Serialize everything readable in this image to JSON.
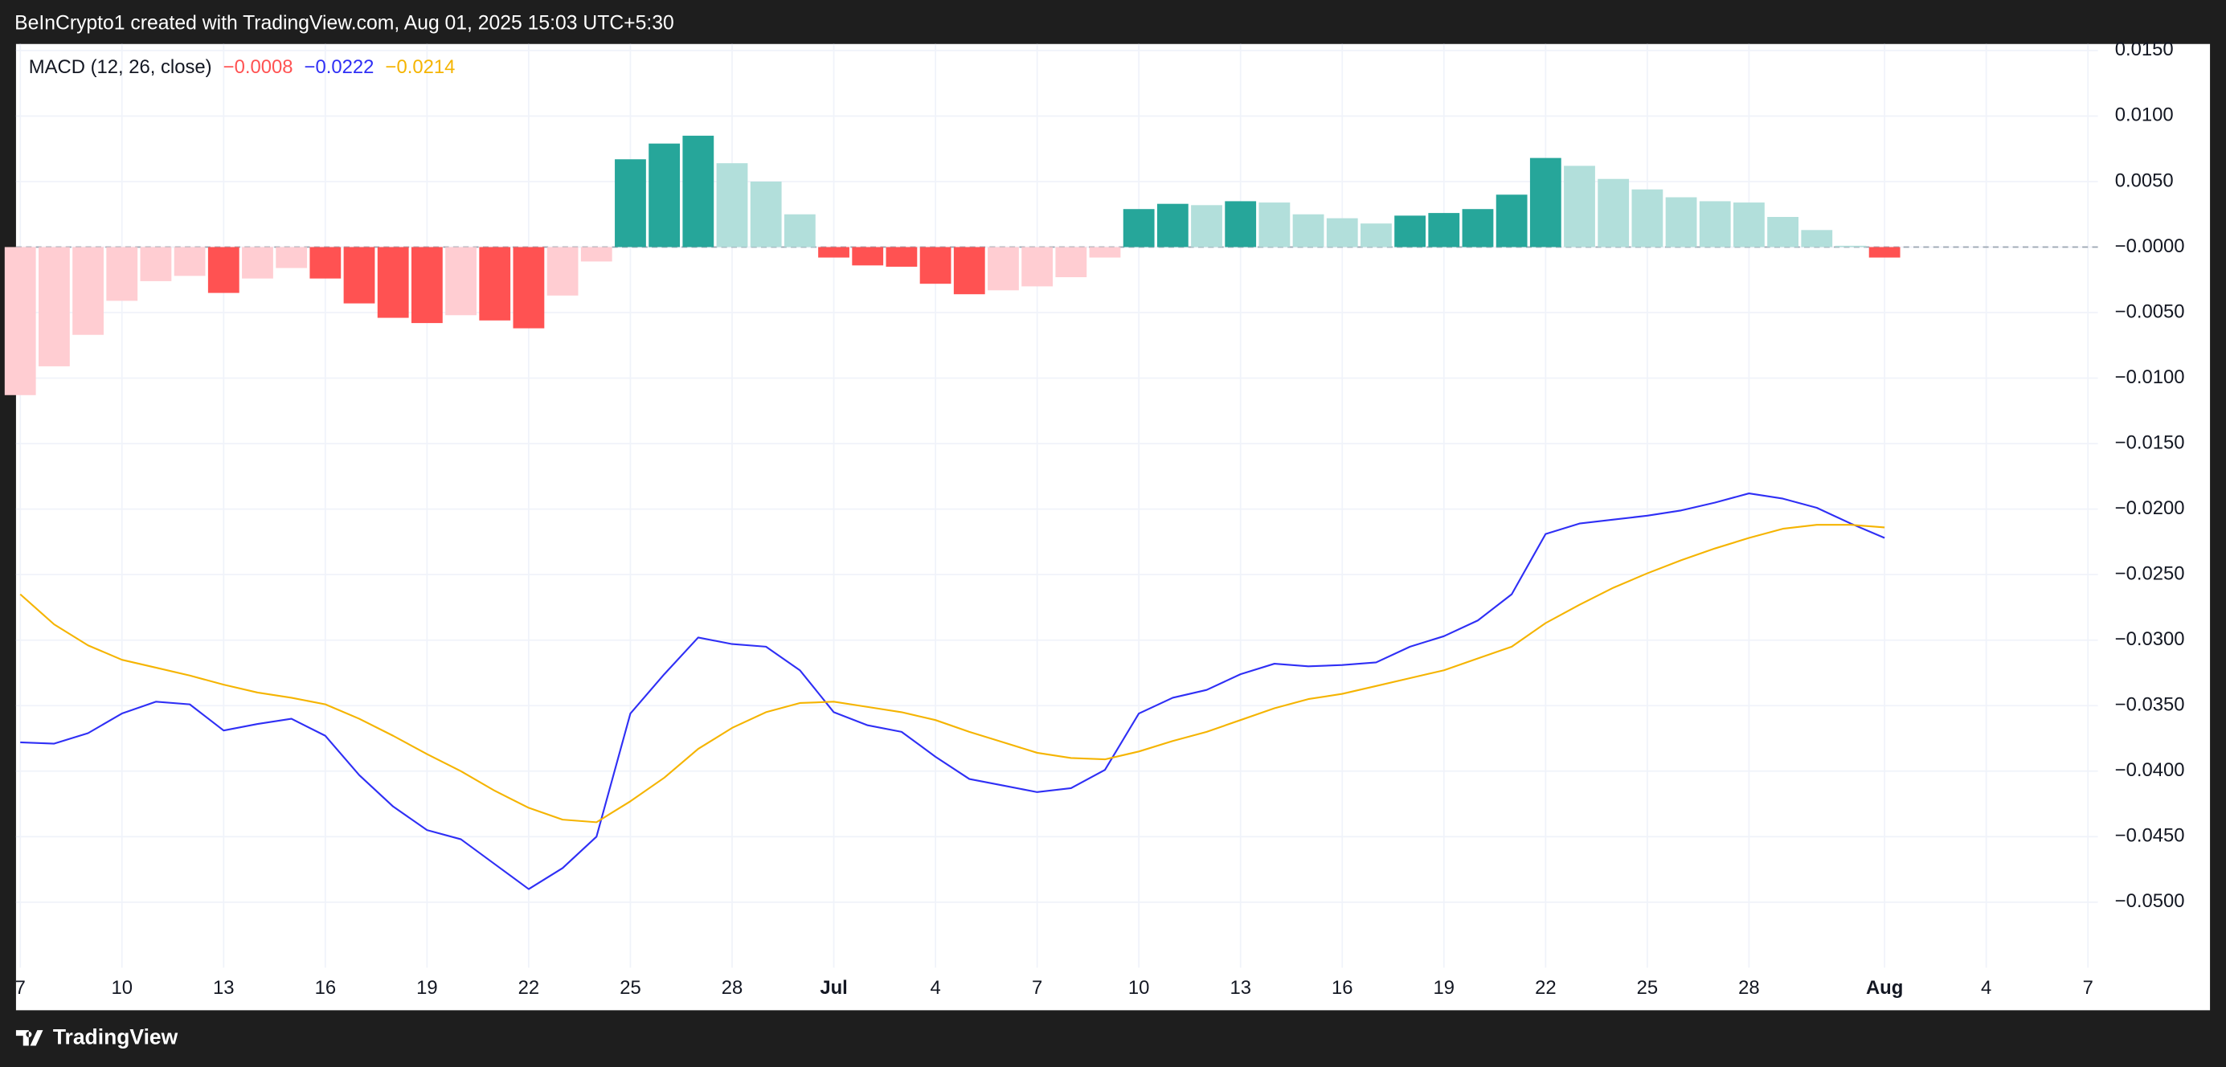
{
  "header": {
    "text": "BeInCrypto1 created with TradingView.com, Aug 01, 2025 15:03 UTC+5:30"
  },
  "footer": {
    "brand": "TradingView"
  },
  "chart_data": {
    "type": "macd",
    "indicator": "MACD (12, 26, close)",
    "x": [
      "2025-06-07",
      "2025-06-08",
      "2025-06-09",
      "2025-06-10",
      "2025-06-11",
      "2025-06-12",
      "2025-06-13",
      "2025-06-14",
      "2025-06-15",
      "2025-06-16",
      "2025-06-17",
      "2025-06-18",
      "2025-06-19",
      "2025-06-20",
      "2025-06-21",
      "2025-06-22",
      "2025-06-23",
      "2025-06-24",
      "2025-06-25",
      "2025-06-26",
      "2025-06-27",
      "2025-06-28",
      "2025-06-29",
      "2025-06-30",
      "2025-07-01",
      "2025-07-02",
      "2025-07-03",
      "2025-07-04",
      "2025-07-05",
      "2025-07-06",
      "2025-07-07",
      "2025-07-08",
      "2025-07-09",
      "2025-07-10",
      "2025-07-11",
      "2025-07-12",
      "2025-07-13",
      "2025-07-14",
      "2025-07-15",
      "2025-07-16",
      "2025-07-17",
      "2025-07-18",
      "2025-07-19",
      "2025-07-20",
      "2025-07-21",
      "2025-07-22",
      "2025-07-23",
      "2025-07-24",
      "2025-07-25",
      "2025-07-26",
      "2025-07-27",
      "2025-07-28",
      "2025-07-29",
      "2025-07-30",
      "2025-07-31",
      "2025-08-01"
    ],
    "series": [
      {
        "kind": "histogram",
        "last_label": "−0.0008",
        "values": [
          -0.0113,
          -0.0091,
          -0.0067,
          -0.0041,
          -0.0026,
          -0.0022,
          -0.0035,
          -0.0024,
          -0.0016,
          -0.0024,
          -0.0043,
          -0.0054,
          -0.0058,
          -0.0052,
          -0.0056,
          -0.0062,
          -0.0037,
          -0.0011,
          0.0067,
          0.0079,
          0.0085,
          0.0064,
          0.005,
          0.0025,
          -0.0008,
          -0.0014,
          -0.0015,
          -0.0028,
          -0.0036,
          -0.0033,
          -0.003,
          -0.0023,
          -0.0008,
          0.0029,
          0.0033,
          0.0032,
          0.0035,
          0.0034,
          0.0025,
          0.0022,
          0.0018,
          0.0024,
          0.0026,
          0.0029,
          0.004,
          0.0068,
          0.0062,
          0.0052,
          0.0044,
          0.0038,
          0.0035,
          0.0034,
          0.0023,
          0.0013,
          0.0001,
          -0.0008
        ],
        "colors": [
          "#ffcdd2",
          "#ffcdd2",
          "#ffcdd2",
          "#ffcdd2",
          "#ffcdd2",
          "#ffcdd2",
          "#ff5252",
          "#ffcdd2",
          "#ffcdd2",
          "#ff5252",
          "#ff5252",
          "#ff5252",
          "#ff5252",
          "#ffcdd2",
          "#ff5252",
          "#ff5252",
          "#ffcdd2",
          "#ffcdd2",
          "#26a69a",
          "#26a69a",
          "#26a69a",
          "#b2dfdb",
          "#b2dfdb",
          "#b2dfdb",
          "#ff5252",
          "#ff5252",
          "#ff5252",
          "#ff5252",
          "#ff5252",
          "#ffcdd2",
          "#ffcdd2",
          "#ffcdd2",
          "#ffcdd2",
          "#26a69a",
          "#26a69a",
          "#b2dfdb",
          "#26a69a",
          "#b2dfdb",
          "#b2dfdb",
          "#b2dfdb",
          "#b2dfdb",
          "#26a69a",
          "#26a69a",
          "#26a69a",
          "#26a69a",
          "#26a69a",
          "#b2dfdb",
          "#b2dfdb",
          "#b2dfdb",
          "#b2dfdb",
          "#b2dfdb",
          "#b2dfdb",
          "#b2dfdb",
          "#b2dfdb",
          "#b2dfdb",
          "#ff5252"
        ]
      },
      {
        "kind": "line",
        "color": "#2f2ff5",
        "last_label": "−0.0222",
        "values": [
          -0.0378,
          -0.0379,
          -0.0371,
          -0.0356,
          -0.0347,
          -0.0349,
          -0.0369,
          -0.0364,
          -0.036,
          -0.0373,
          -0.0403,
          -0.0427,
          -0.0445,
          -0.0452,
          -0.0471,
          -0.049,
          -0.0474,
          -0.045,
          -0.0356,
          -0.0326,
          -0.0298,
          -0.0303,
          -0.0305,
          -0.0323,
          -0.0355,
          -0.0365,
          -0.037,
          -0.0389,
          -0.0406,
          -0.0411,
          -0.0416,
          -0.0413,
          -0.0399,
          -0.0356,
          -0.0344,
          -0.0338,
          -0.0326,
          -0.0318,
          -0.032,
          -0.0319,
          -0.0317,
          -0.0305,
          -0.0297,
          -0.0285,
          -0.0265,
          -0.0219,
          -0.0211,
          -0.0208,
          -0.0205,
          -0.0201,
          -0.0195,
          -0.0188,
          -0.0192,
          -0.0199,
          -0.0211,
          -0.0222
        ]
      },
      {
        "kind": "line",
        "color": "#f5b400",
        "last_label": "−0.0214",
        "values": [
          -0.0265,
          -0.0288,
          -0.0304,
          -0.0315,
          -0.0321,
          -0.0327,
          -0.0334,
          -0.034,
          -0.0344,
          -0.0349,
          -0.036,
          -0.0373,
          -0.0387,
          -0.04,
          -0.0415,
          -0.0428,
          -0.0437,
          -0.0439,
          -0.0423,
          -0.0405,
          -0.0383,
          -0.0367,
          -0.0355,
          -0.0348,
          -0.0347,
          -0.0351,
          -0.0355,
          -0.0361,
          -0.037,
          -0.0378,
          -0.0386,
          -0.039,
          -0.0391,
          -0.0385,
          -0.0377,
          -0.037,
          -0.0361,
          -0.0352,
          -0.0345,
          -0.0341,
          -0.0335,
          -0.0329,
          -0.0323,
          -0.0314,
          -0.0305,
          -0.0287,
          -0.0273,
          -0.026,
          -0.0249,
          -0.0239,
          -0.023,
          -0.0222,
          -0.0215,
          -0.0212,
          -0.0212,
          -0.0214
        ]
      }
    ],
    "xlim": [
      "2025-06-07",
      "2025-08-07"
    ],
    "xticks": [
      {
        "value": "2025-06-07",
        "label": "7"
      },
      {
        "value": "2025-06-10",
        "label": "10"
      },
      {
        "value": "2025-06-13",
        "label": "13"
      },
      {
        "value": "2025-06-16",
        "label": "16"
      },
      {
        "value": "2025-06-19",
        "label": "19"
      },
      {
        "value": "2025-06-22",
        "label": "22"
      },
      {
        "value": "2025-06-25",
        "label": "25"
      },
      {
        "value": "2025-06-28",
        "label": "28"
      },
      {
        "value": "2025-07-01",
        "label": "Jul"
      },
      {
        "value": "2025-07-04",
        "label": "4"
      },
      {
        "value": "2025-07-07",
        "label": "7"
      },
      {
        "value": "2025-07-10",
        "label": "10"
      },
      {
        "value": "2025-07-13",
        "label": "13"
      },
      {
        "value": "2025-07-16",
        "label": "16"
      },
      {
        "value": "2025-07-19",
        "label": "19"
      },
      {
        "value": "2025-07-22",
        "label": "22"
      },
      {
        "value": "2025-07-25",
        "label": "25"
      },
      {
        "value": "2025-07-28",
        "label": "28"
      },
      {
        "value": "2025-08-01",
        "label": "Aug"
      },
      {
        "value": "2025-08-04",
        "label": "4"
      },
      {
        "value": "2025-08-07",
        "label": "7"
      }
    ],
    "ylim": [
      -0.055,
      0.0155
    ],
    "yticks": [
      {
        "value": 0.015,
        "label": "0.0150"
      },
      {
        "value": 0.01,
        "label": "0.0100"
      },
      {
        "value": 0.005,
        "label": "0.0050"
      },
      {
        "value": 0,
        "label": "−0.0000"
      },
      {
        "value": -0.005,
        "label": "−0.0050"
      },
      {
        "value": -0.01,
        "label": "−0.0100"
      },
      {
        "value": -0.015,
        "label": "−0.0150"
      },
      {
        "value": -0.02,
        "label": "−0.0200"
      },
      {
        "value": -0.025,
        "label": "−0.0250"
      },
      {
        "value": -0.03,
        "label": "−0.0300"
      },
      {
        "value": -0.035,
        "label": "−0.0350"
      },
      {
        "value": -0.04,
        "label": "−0.0400"
      },
      {
        "value": -0.045,
        "label": "−0.0450"
      },
      {
        "value": -0.05,
        "label": "−0.0500"
      }
    ],
    "grid": true
  }
}
